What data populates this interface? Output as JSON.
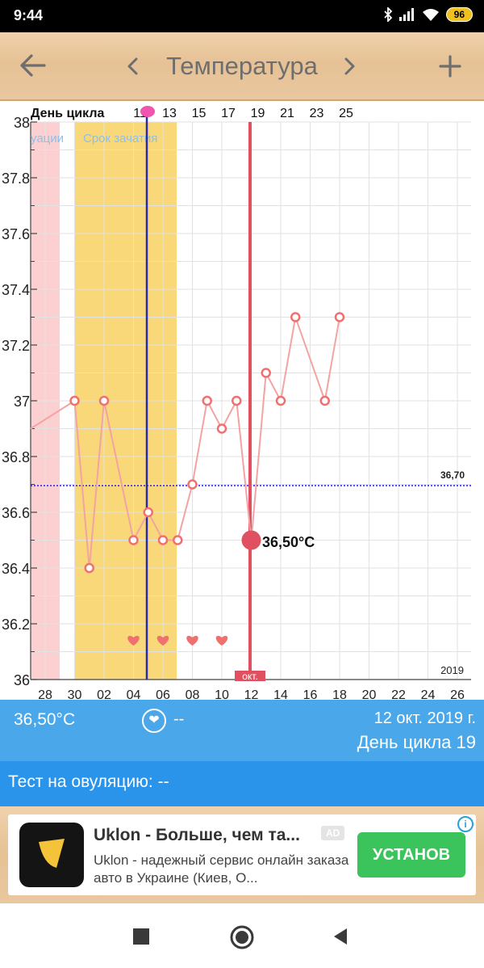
{
  "status_bar": {
    "time": "9:44",
    "battery": "96",
    "icons": [
      "bluetooth-icon",
      "signal-icon",
      "wifi-icon",
      "battery-icon"
    ]
  },
  "app_bar": {
    "title": "Температура",
    "back_icon": "arrow-left-icon",
    "prev_icon": "chevron-left-icon",
    "next_icon": "chevron-right-icon",
    "add_icon": "plus-icon"
  },
  "chart": {
    "cycle_label": "День цикла",
    "cycle_days": [
      "11",
      "13",
      "15",
      "17",
      "19",
      "21",
      "23",
      "25"
    ],
    "band_labels": {
      "ovulation": "уации",
      "conception": "Срок зачатия"
    },
    "ref_line_label": "36,70",
    "selected_label": "36,50°C",
    "month_marker": "окт.",
    "year": "2019",
    "x_dates": [
      "28",
      "30",
      "02",
      "04",
      "06",
      "08",
      "10",
      "12",
      "14",
      "16",
      "18",
      "20",
      "22",
      "24",
      "26"
    ],
    "y_ticks": [
      "38",
      "37.8",
      "37.6",
      "37.4",
      "37.2",
      "37",
      "36.8",
      "36.6",
      "36.4",
      "36.2",
      "36"
    ],
    "colors": {
      "line": "#f4a3a3",
      "point": "#f07070",
      "selected": "#e05060",
      "conception_band": "#f8d878",
      "period_band": "#fcd0d0",
      "ref_line": "#1a1aff",
      "ovulation_line": "#2b2ba8"
    }
  },
  "chart_data": {
    "type": "line",
    "title": "",
    "xlabel": "",
    "ylabel": "",
    "ylim": [
      36,
      38
    ],
    "reference_line": 36.7,
    "series": [
      {
        "values": [
          {
            "x": "27 сен",
            "y": 36.9
          },
          {
            "x": "30 сен",
            "y": 37.0
          },
          {
            "x": "01 окт",
            "y": 36.4
          },
          {
            "x": "02 окт",
            "y": 37.0
          },
          {
            "x": "04 окт",
            "y": 36.5
          },
          {
            "x": "05 окт",
            "y": 36.6
          },
          {
            "x": "06 окт",
            "y": 36.5
          },
          {
            "x": "07 окт",
            "y": 36.5
          },
          {
            "x": "08 окт",
            "y": 36.7
          },
          {
            "x": "09 окт",
            "y": 37.0
          },
          {
            "x": "10 окт",
            "y": 36.9
          },
          {
            "x": "11 окт",
            "y": 37.0
          },
          {
            "x": "12 окт",
            "y": 36.5
          },
          {
            "x": "13 окт",
            "y": 37.1
          },
          {
            "x": "14 окт",
            "y": 37.0
          },
          {
            "x": "15 окт",
            "y": 37.3
          },
          {
            "x": "17 окт",
            "y": 37.0
          },
          {
            "x": "18 окт",
            "y": 37.3
          }
        ]
      }
    ],
    "hearts_on": [
      "04 окт",
      "06 окт",
      "08 окт",
      "10 окт"
    ],
    "selected_point": {
      "x": "12 окт",
      "y": 36.5
    }
  },
  "info": {
    "temperature": "36,50°C",
    "heart_value": "--",
    "date": "12 окт. 2019 г.",
    "cycle_day": "День цикла 19",
    "ovulation_test": "Тест на овуляцию: --"
  },
  "ad": {
    "title": "Uklon - Больше, чем та...",
    "badge": "AD",
    "description": "Uklon - надежный сервис онлайн заказа авто в Украине (Киев, О...",
    "button": "УСТАНОВ",
    "info_icon": "i"
  },
  "nav": {
    "icons": [
      "recents-square-icon",
      "home-circle-icon",
      "back-triangle-icon"
    ]
  }
}
